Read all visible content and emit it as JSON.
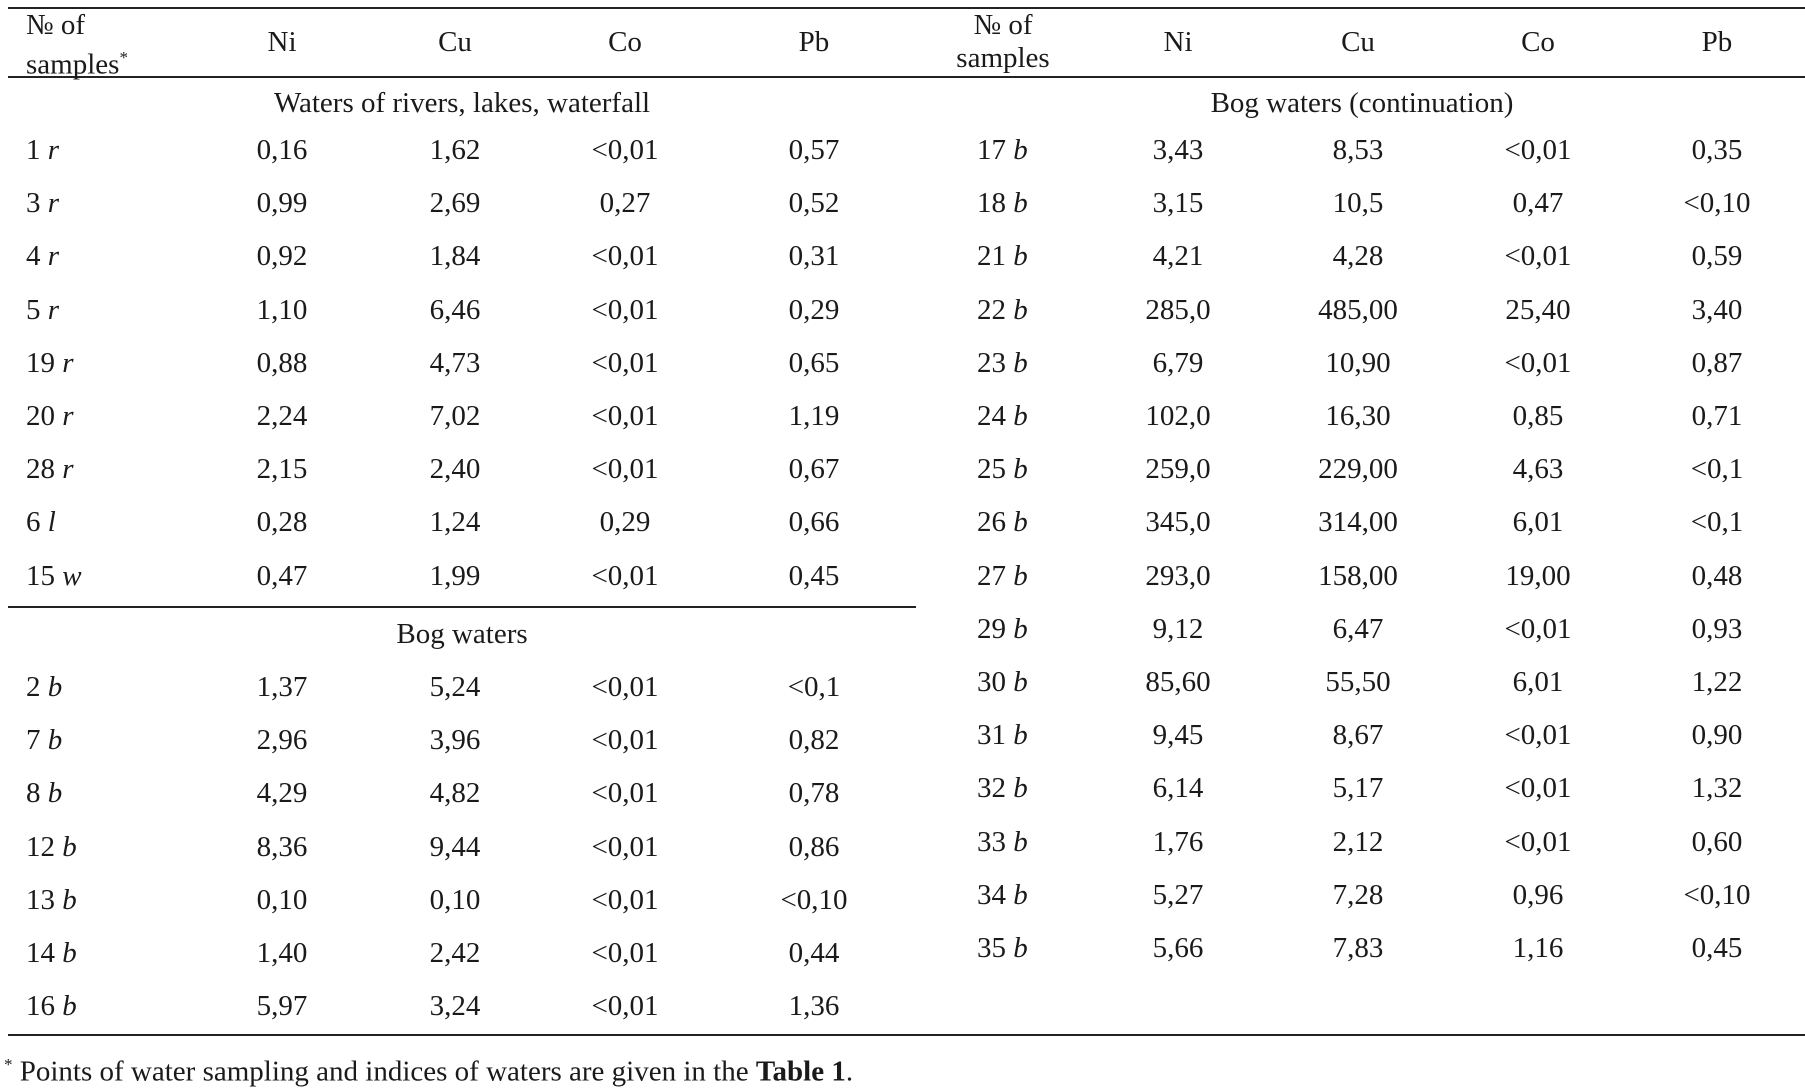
{
  "header": {
    "left": {
      "sample_col_line1": "№ of",
      "sample_col_line2": "samples",
      "sample_col_mark": "*",
      "ni": "Ni",
      "cu": "Cu",
      "co": "Co",
      "pb": "Pb"
    },
    "right": {
      "sample_col_line1": "№ of",
      "sample_col_line2": "samples",
      "ni": "Ni",
      "cu": "Cu",
      "co": "Co",
      "pb": "Pb"
    }
  },
  "sections": {
    "rivers": "Waters of rivers, lakes, waterfall",
    "bog": "Bog waters",
    "bog_cont": "Bog waters (continuation)"
  },
  "left_rivers": [
    {
      "num": "1",
      "idx": "r",
      "ni": "0,16",
      "cu": "1,62",
      "co": "<0,01",
      "pb": "0,57"
    },
    {
      "num": "3",
      "idx": "r",
      "ni": "0,99",
      "cu": "2,69",
      "co": "0,27",
      "pb": "0,52"
    },
    {
      "num": "4",
      "idx": "r",
      "ni": "0,92",
      "cu": "1,84",
      "co": "<0,01",
      "pb": "0,31"
    },
    {
      "num": "5",
      "idx": "r",
      "ni": "1,10",
      "cu": "6,46",
      "co": "<0,01",
      "pb": "0,29"
    },
    {
      "num": "19",
      "idx": "r",
      "ni": "0,88",
      "cu": "4,73",
      "co": "<0,01",
      "pb": "0,65"
    },
    {
      "num": "20",
      "idx": "r",
      "ni": "2,24",
      "cu": "7,02",
      "co": "<0,01",
      "pb": "1,19"
    },
    {
      "num": "28",
      "idx": "r",
      "ni": "2,15",
      "cu": "2,40",
      "co": "<0,01",
      "pb": "0,67"
    },
    {
      "num": "6",
      "idx": "l",
      "ni": "0,28",
      "cu": "1,24",
      "co": "0,29",
      "pb": "0,66"
    },
    {
      "num": "15",
      "idx": "w",
      "ni": "0,47",
      "cu": "1,99",
      "co": "<0,01",
      "pb": "0,45"
    }
  ],
  "left_bog": [
    {
      "num": "2",
      "idx": "b",
      "ni": "1,37",
      "cu": "5,24",
      "co": "<0,01",
      "pb": "<0,1"
    },
    {
      "num": "7",
      "idx": "b",
      "ni": "2,96",
      "cu": "3,96",
      "co": "<0,01",
      "pb": "0,82"
    },
    {
      "num": "8",
      "idx": "b",
      "ni": "4,29",
      "cu": "4,82",
      "co": "<0,01",
      "pb": "0,78"
    },
    {
      "num": "12",
      "idx": "b",
      "ni": "8,36",
      "cu": "9,44",
      "co": "<0,01",
      "pb": "0,86"
    },
    {
      "num": "13",
      "idx": "b",
      "ni": "0,10",
      "cu": "0,10",
      "co": "<0,01",
      "pb": "<0,10"
    },
    {
      "num": "14",
      "idx": "b",
      "ni": "1,40",
      "cu": "2,42",
      "co": "<0,01",
      "pb": "0,44"
    },
    {
      "num": "16",
      "idx": "b",
      "ni": "5,97",
      "cu": "3,24",
      "co": "<0,01",
      "pb": "1,36"
    }
  ],
  "right_bog": [
    {
      "num": "17",
      "idx": "b",
      "ni": "3,43",
      "cu": "8,53",
      "co": "<0,01",
      "pb": "0,35"
    },
    {
      "num": "18",
      "idx": "b",
      "ni": "3,15",
      "cu": "10,5",
      "co": "0,47",
      "pb": "<0,10"
    },
    {
      "num": "21",
      "idx": "b",
      "ni": "4,21",
      "cu": "4,28",
      "co": "<0,01",
      "pb": "0,59"
    },
    {
      "num": "22",
      "idx": "b",
      "ni": "285,0",
      "cu": "485,00",
      "co": "25,40",
      "pb": "3,40"
    },
    {
      "num": "23",
      "idx": "b",
      "ni": "6,79",
      "cu": "10,90",
      "co": "<0,01",
      "pb": "0,87"
    },
    {
      "num": "24",
      "idx": "b",
      "ni": "102,0",
      "cu": "16,30",
      "co": "0,85",
      "pb": "0,71"
    },
    {
      "num": "25",
      "idx": "b",
      "ni": "259,0",
      "cu": "229,00",
      "co": "4,63",
      "pb": "<0,1"
    },
    {
      "num": "26",
      "idx": "b",
      "ni": "345,0",
      "cu": "314,00",
      "co": "6,01",
      "pb": "<0,1"
    },
    {
      "num": "27",
      "idx": "b",
      "ni": "293,0",
      "cu": "158,00",
      "co": "19,00",
      "pb": "0,48"
    },
    {
      "num": "29",
      "idx": "b",
      "ni": "9,12",
      "cu": "6,47",
      "co": "<0,01",
      "pb": "0,93"
    },
    {
      "num": "30",
      "idx": "b",
      "ni": "85,60",
      "cu": "55,50",
      "co": "6,01",
      "pb": "1,22"
    },
    {
      "num": "31",
      "idx": "b",
      "ni": "9,45",
      "cu": "8,67",
      "co": "<0,01",
      "pb": "0,90"
    },
    {
      "num": "32",
      "idx": "b",
      "ni": "6,14",
      "cu": "5,17",
      "co": "<0,01",
      "pb": "1,32"
    },
    {
      "num": "33",
      "idx": "b",
      "ni": "1,76",
      "cu": "2,12",
      "co": "<0,01",
      "pb": "0,60"
    },
    {
      "num": "34",
      "idx": "b",
      "ni": "5,27",
      "cu": "7,28",
      "co": "0,96",
      "pb": "<0,10"
    },
    {
      "num": "35",
      "idx": "b",
      "ni": "5,66",
      "cu": "7,83",
      "co": "1,16",
      "pb": "0,45"
    }
  ],
  "footnote": {
    "mark": "*",
    "text_before": " Points of water sampling and indices of waters are given in the ",
    "bold": "Table 1",
    "text_after": "."
  }
}
